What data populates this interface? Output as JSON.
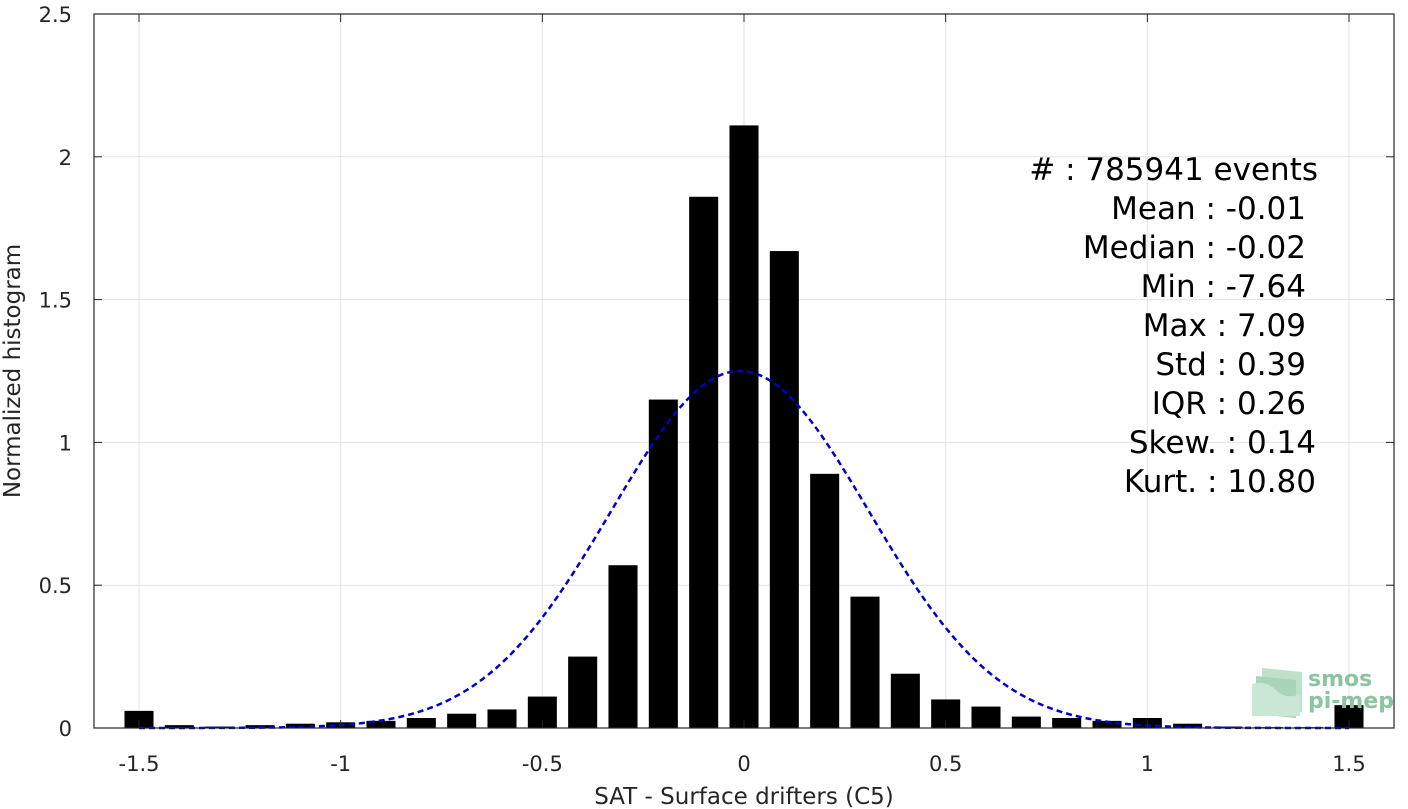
{
  "chart_data": {
    "type": "bar",
    "xlabel": "SAT - Surface drifters (C5)",
    "ylabel": "Normalized histogram",
    "xlim": [
      -1.5,
      1.5
    ],
    "ylim": [
      0,
      2.5
    ],
    "grid": true,
    "x_ticks": [
      "-1.5",
      "-1",
      "-0.5",
      "0",
      "0.5",
      "1",
      "1.5"
    ],
    "x_tick_values": [
      -1.5,
      -1,
      -0.5,
      0,
      0.5,
      1,
      1.5
    ],
    "y_ticks": [
      "0",
      "0.5",
      "1",
      "1.5",
      "2",
      "2.5"
    ],
    "y_tick_values": [
      0,
      0.5,
      1,
      1.5,
      2,
      2.5
    ],
    "bars": {
      "color": "#000000",
      "x": [
        -1.5,
        -1.4,
        -1.3,
        -1.2,
        -1.1,
        -1.0,
        -0.9,
        -0.8,
        -0.7,
        -0.6,
        -0.5,
        -0.4,
        -0.3,
        -0.2,
        -0.1,
        0.0,
        0.1,
        0.2,
        0.3,
        0.4,
        0.5,
        0.6,
        0.7,
        0.8,
        0.9,
        1.0,
        1.1,
        1.2,
        1.3,
        1.4,
        1.5
      ],
      "values": [
        0.06,
        0.01,
        0.005,
        0.01,
        0.015,
        0.02,
        0.025,
        0.035,
        0.05,
        0.065,
        0.11,
        0.25,
        0.57,
        1.15,
        1.86,
        2.11,
        1.67,
        0.89,
        0.46,
        0.19,
        0.1,
        0.075,
        0.04,
        0.035,
        0.025,
        0.035,
        0.015,
        0.005,
        0.003,
        0.003,
        0.08
      ]
    },
    "fit": {
      "style": "dashed",
      "color": "#0000cc",
      "mean": -0.01,
      "std": 0.32,
      "peak": 1.25
    },
    "stats": {
      "count": "#  : 785941 events",
      "mean": "Mean : -0.01",
      "median": "Median : -0.02",
      "min": "Min : -7.64",
      "max": "Max : 7.09",
      "std": "Std : 0.39",
      "iqr": "IQR : 0.26",
      "skew": "Skew. : 0.14",
      "kurt": "Kurt. : 10.80"
    }
  },
  "logo": {
    "line1": "smos",
    "line2": "pi-mep"
  }
}
